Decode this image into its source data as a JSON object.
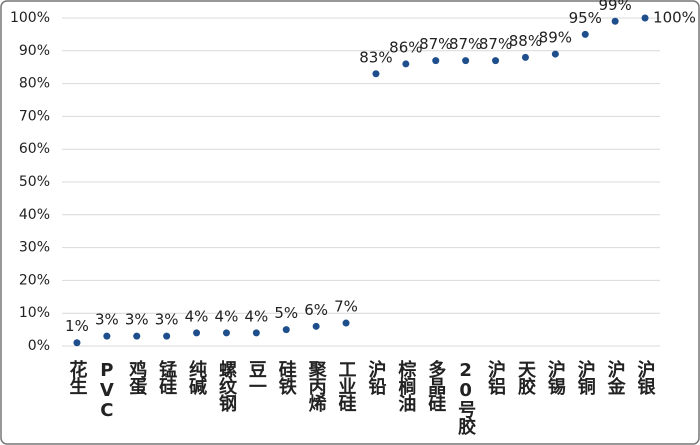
{
  "chart_data": {
    "type": "scatter",
    "categories": [
      "花生",
      "PVC",
      "鸡蛋",
      "锰硅",
      "纯碱",
      "螺纹钢",
      "豆一",
      "硅铁",
      "聚丙烯",
      "工业硅",
      "沪铅",
      "棕榈油",
      "多晶硅",
      "20号胶",
      "沪铝",
      "天胶",
      "沪锡",
      "沪铜",
      "沪金",
      "沪银"
    ],
    "values": [
      1,
      3,
      3,
      3,
      4,
      4,
      4,
      5,
      6,
      7,
      83,
      86,
      87,
      87,
      87,
      88,
      89,
      95,
      99,
      100
    ],
    "value_labels": [
      "1%",
      "3%",
      "3%",
      "3%",
      "4%",
      "4%",
      "4%",
      "5%",
      "6%",
      "7%",
      "83%",
      "86%",
      "87%",
      "87%",
      "87%",
      "88%",
      "89%",
      "95%",
      "99%",
      "100%"
    ],
    "color": "#1f4e8c",
    "ylim": [
      0,
      100
    ],
    "yticks": [
      {
        "value": 0,
        "label": "0%"
      },
      {
        "value": 10,
        "label": "10%"
      },
      {
        "value": 20,
        "label": "20%"
      },
      {
        "value": 30,
        "label": "30%"
      },
      {
        "value": 40,
        "label": "40%"
      },
      {
        "value": 50,
        "label": "50%"
      },
      {
        "value": 60,
        "label": "60%"
      },
      {
        "value": 70,
        "label": "70%"
      },
      {
        "value": 80,
        "label": "80%"
      },
      {
        "value": 90,
        "label": "90%"
      },
      {
        "value": 100,
        "label": "100%"
      }
    ],
    "grid": true
  }
}
